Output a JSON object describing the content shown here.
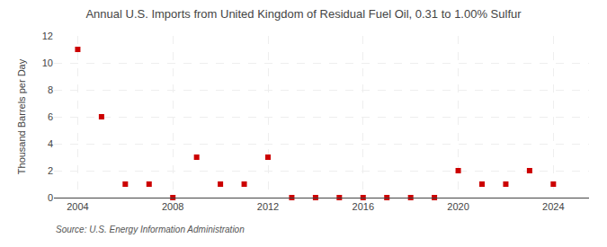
{
  "chart_data": {
    "type": "scatter",
    "title": "Annual U.S. Imports from United Kingdom of Residual Fuel Oil, 0.31 to 1.00% Sulfur",
    "ylabel": "Thousand Barrels per Day",
    "source": "Source: U.S. Energy Information Administration",
    "x": [
      2004,
      2005,
      2006,
      2007,
      2008,
      2009,
      2010,
      2011,
      2012,
      2013,
      2014,
      2015,
      2016,
      2017,
      2018,
      2019,
      2020,
      2021,
      2022,
      2023,
      2024
    ],
    "values": [
      11,
      6,
      1,
      1,
      0,
      3,
      1,
      1,
      3,
      0,
      0,
      0,
      0,
      0,
      0,
      0,
      2,
      1,
      1,
      2,
      1
    ],
    "color": "#cc0000",
    "marker": "square",
    "xlim": [
      2003,
      2025.5
    ],
    "xticks": [
      2004,
      2008,
      2012,
      2016,
      2020,
      2024
    ],
    "ylim": [
      0,
      12
    ],
    "yticks": [
      0,
      2,
      4,
      6,
      8,
      10,
      12
    ],
    "grid": true
  }
}
